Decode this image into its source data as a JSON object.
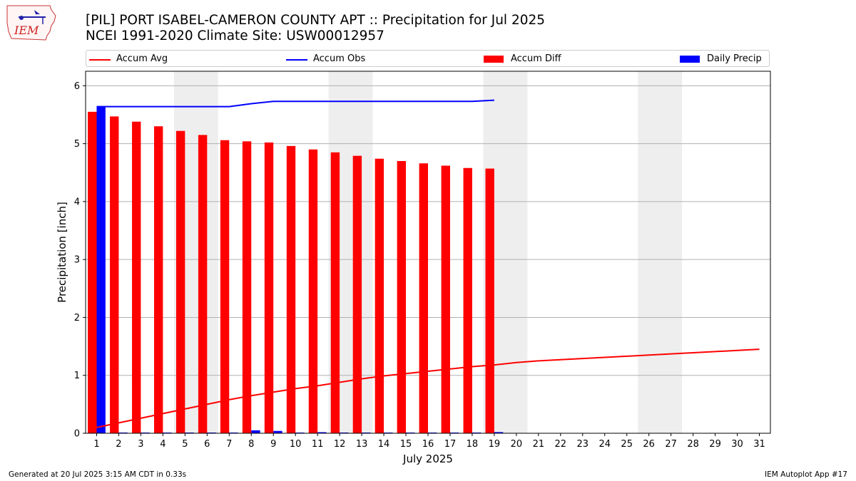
{
  "header": {
    "title_line1": "[PIL] PORT ISABEL-CAMERON COUNTY APT :: Precipitation for Jul 2025",
    "title_line2": "NCEI 1991-2020 Climate Site: USW00012957"
  },
  "logo": {
    "text": "IEM"
  },
  "legend": {
    "items": [
      {
        "label": "Accum Avg",
        "kind": "line",
        "color": "#ff0000"
      },
      {
        "label": "Accum Obs",
        "kind": "line",
        "color": "#0000ff"
      },
      {
        "label": "Accum Diff",
        "kind": "bar",
        "color": "#ff0000"
      },
      {
        "label": "Daily Precip",
        "kind": "bar",
        "color": "#0000ff"
      }
    ]
  },
  "footer": {
    "left": "Generated at 20 Jul 2025 3:15 AM CDT in 0.33s",
    "right": "IEM Autoplot App #17"
  },
  "chart_data": {
    "type": "bar",
    "xlabel": "July 2025",
    "ylabel": "Precipitation [inch]",
    "ylim": [
      0,
      6.25
    ],
    "yticks": [
      0,
      1,
      2,
      3,
      4,
      5,
      6
    ],
    "days": [
      1,
      2,
      3,
      4,
      5,
      6,
      7,
      8,
      9,
      10,
      11,
      12,
      13,
      14,
      15,
      16,
      17,
      18,
      19,
      20,
      21,
      22,
      23,
      24,
      25,
      26,
      27,
      28,
      29,
      30,
      31
    ],
    "weekend_shading": [
      [
        5,
        6
      ],
      [
        12,
        13
      ],
      [
        19,
        20
      ],
      [
        26,
        27
      ]
    ],
    "grid": "horizontal",
    "series": [
      {
        "name": "Accum Diff",
        "type": "bar",
        "color": "#ff0000",
        "values": [
          5.55,
          5.47,
          5.38,
          5.3,
          5.22,
          5.15,
          5.06,
          5.04,
          5.02,
          4.96,
          4.9,
          4.85,
          4.79,
          4.74,
          4.7,
          4.66,
          4.62,
          4.58,
          4.57
        ]
      },
      {
        "name": "Daily Precip",
        "type": "bar",
        "color": "#0000ff",
        "values": [
          5.64,
          0.0,
          0.0,
          0.0,
          0.0,
          0.0,
          0.0,
          0.05,
          0.04,
          0.0,
          0.01,
          0.0,
          0.0,
          0.0,
          0.0,
          0.0,
          0.0,
          0.0,
          0.02
        ]
      },
      {
        "name": "Accum Obs",
        "type": "line",
        "color": "#0000ff",
        "values": [
          5.64,
          5.64,
          5.64,
          5.64,
          5.64,
          5.64,
          5.64,
          5.69,
          5.73,
          5.73,
          5.73,
          5.73,
          5.73,
          5.73,
          5.73,
          5.73,
          5.73,
          5.73,
          5.75
        ]
      },
      {
        "name": "Accum Avg",
        "type": "line",
        "color": "#ff0000",
        "values": [
          0.1,
          0.18,
          0.26,
          0.34,
          0.42,
          0.5,
          0.58,
          0.65,
          0.71,
          0.77,
          0.82,
          0.88,
          0.94,
          0.99,
          1.03,
          1.07,
          1.11,
          1.15,
          1.18,
          1.22,
          1.25,
          1.27,
          1.29,
          1.31,
          1.33,
          1.35,
          1.37,
          1.39,
          1.41,
          1.43,
          1.45
        ]
      }
    ]
  }
}
